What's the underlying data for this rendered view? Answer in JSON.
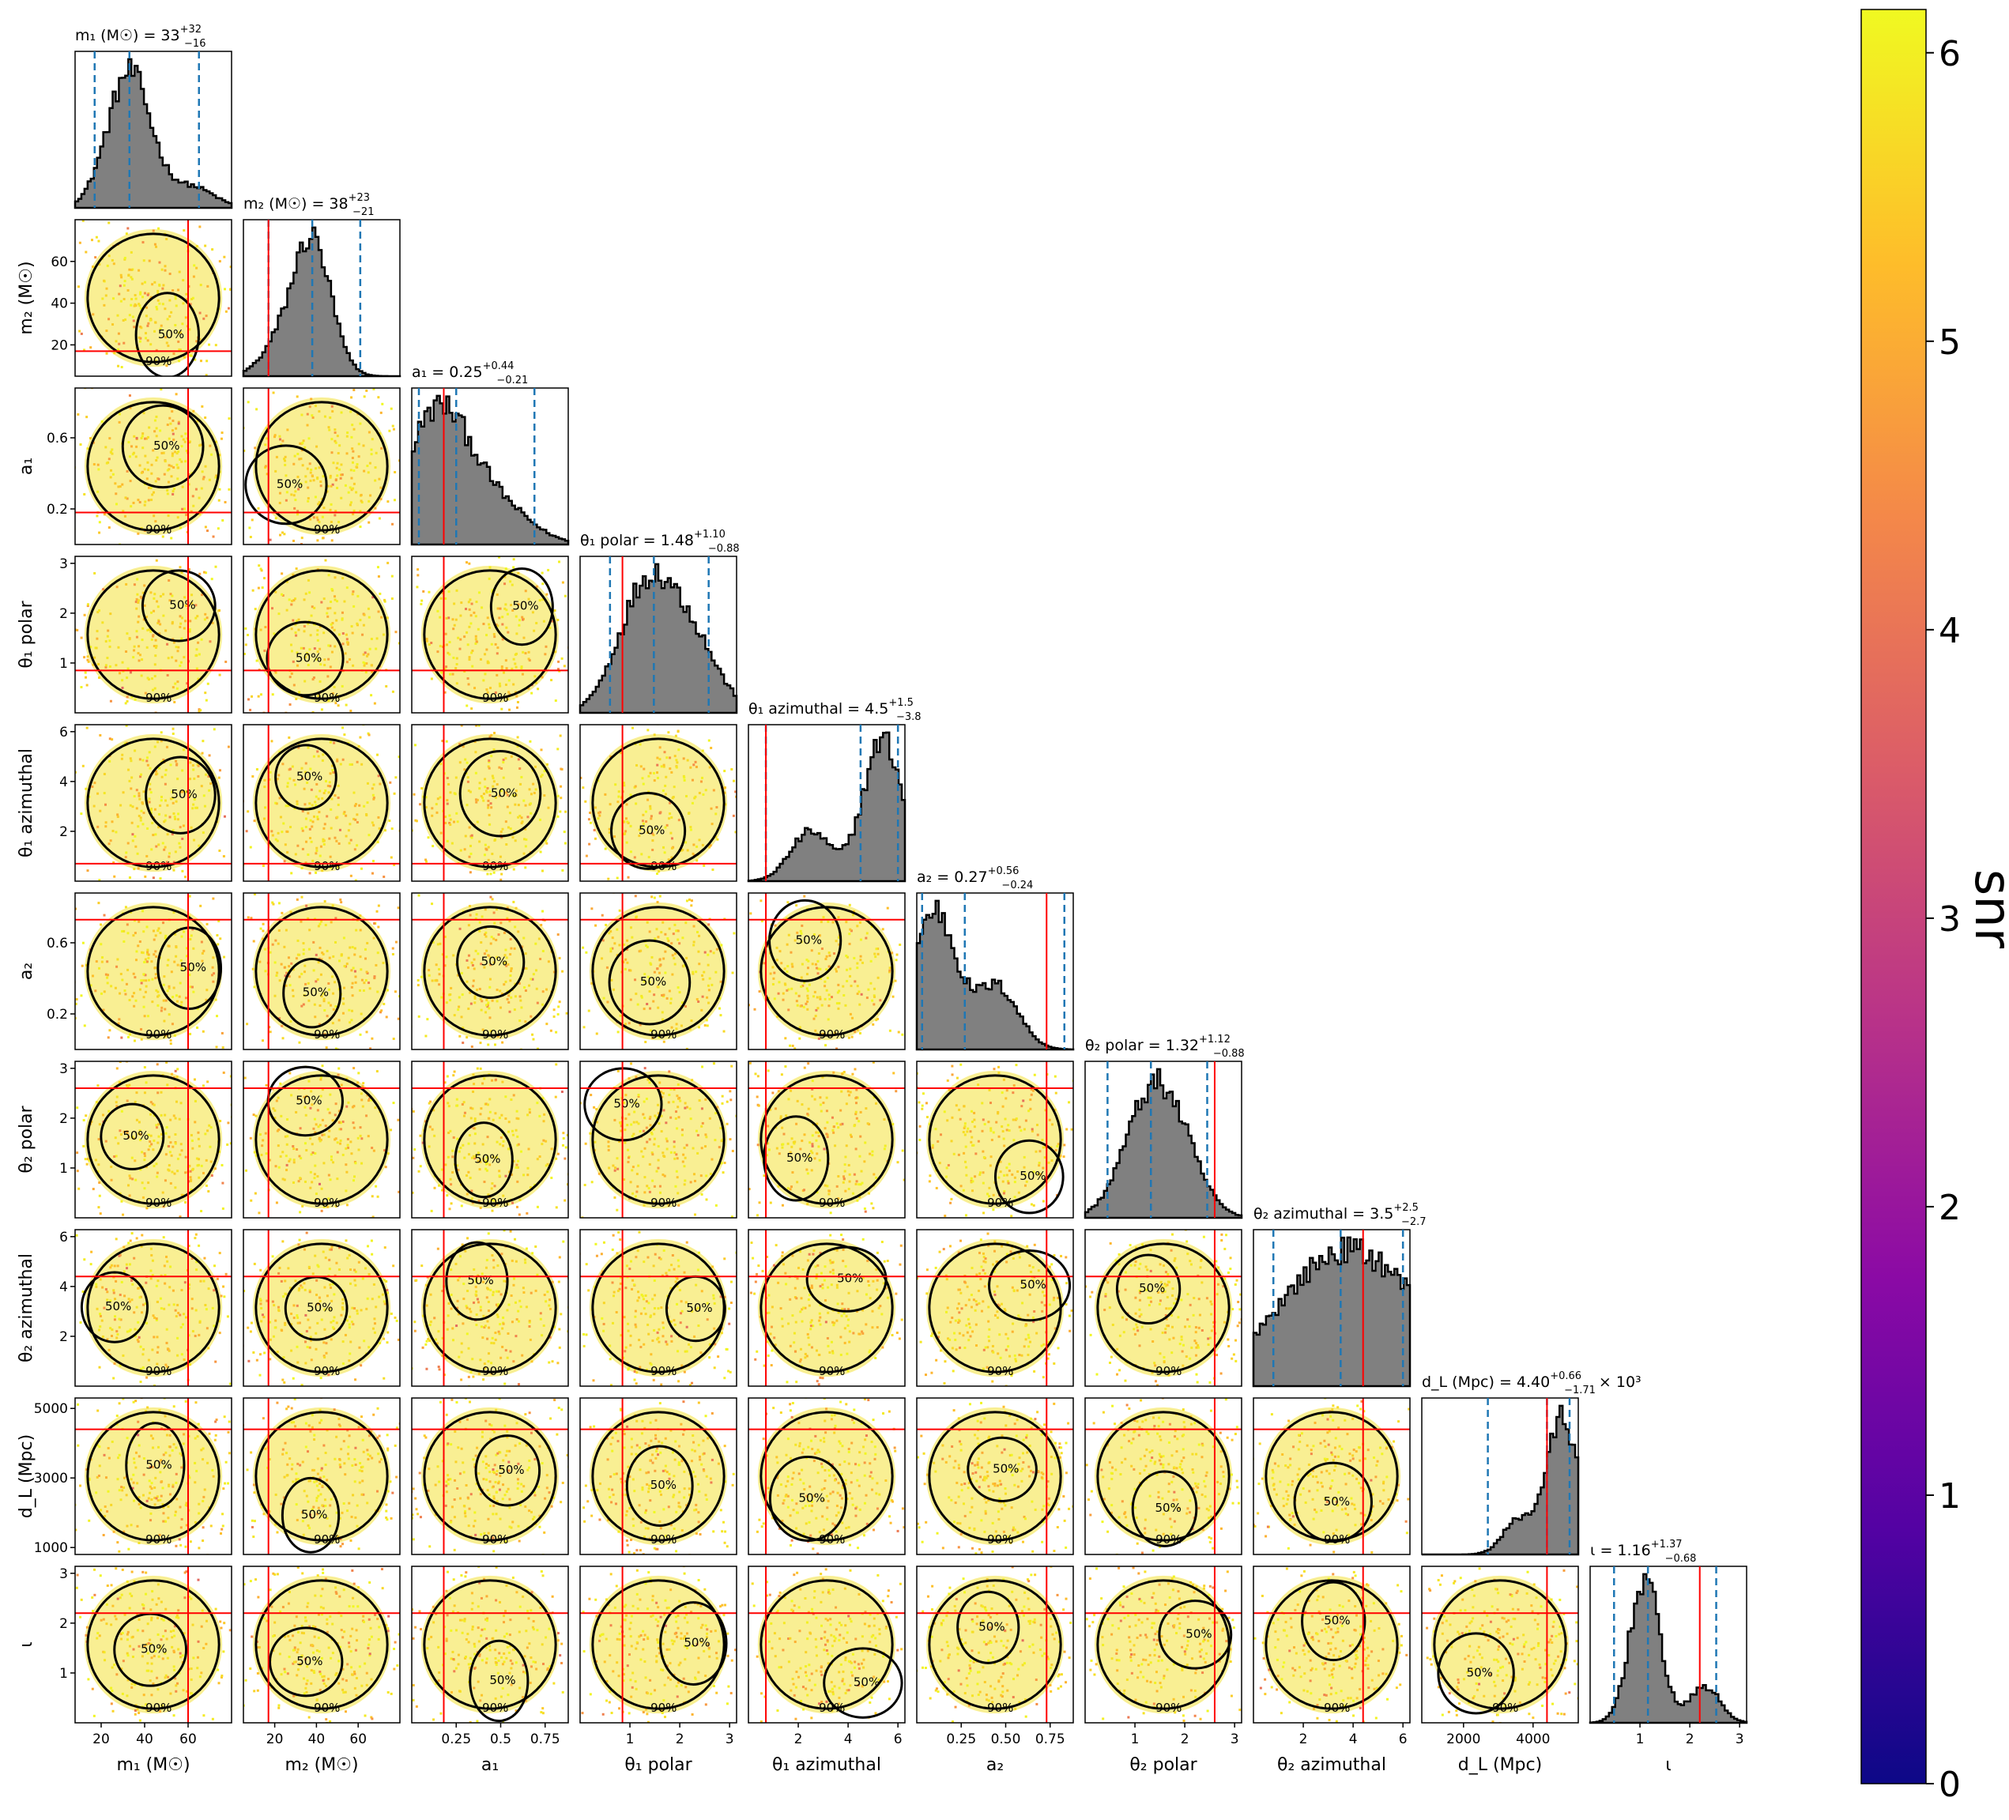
{
  "chart_data": {
    "type": "scatter",
    "subtype": "corner-plot",
    "colorbar": {
      "label": "snr",
      "range": [
        0,
        6.15
      ],
      "ticks": [
        "0",
        "1",
        "2",
        "3",
        "4",
        "5",
        "6"
      ],
      "colormap": [
        "#0d0887",
        "#5302a3",
        "#8b0aa5",
        "#b83289",
        "#db5c68",
        "#f48849",
        "#febd2a",
        "#f0f921"
      ]
    },
    "colors": {
      "truth_line": "#ff0000",
      "quantile_line": "#1f77b4",
      "histogram_fill": "#808080",
      "contour": "#000000"
    },
    "contour_labels": [
      "50%",
      "90%"
    ],
    "parameters": [
      {
        "xlabel": "m₁ (M☉)",
        "ylabel": "m₂ (M☉)",
        "title_name": "m₁ (M☉) = 33",
        "title_sup": "+32",
        "title_sub": "−16",
        "title_extra": "",
        "range": [
          8,
          80
        ],
        "ticks": [
          20,
          40,
          60
        ],
        "truth": 60,
        "quantiles": [
          17,
          33,
          65
        ],
        "hist_peak": 33,
        "hist_width": 10,
        "hist_alt_peak": 62,
        "hist_alt_weight": 0.15
      },
      {
        "xlabel": "m₂ (M☉)",
        "ylabel": "m₂ (M☉)",
        "title_name": "m₂ (M☉) = 38",
        "title_sup": "+23",
        "title_sub": "−21",
        "title_extra": "",
        "range": [
          5,
          80
        ],
        "ticks": [
          20,
          40,
          60
        ],
        "truth": 17,
        "quantiles": [
          17,
          38,
          61
        ],
        "hist_peak": 38,
        "hist_width": 9,
        "hist_alt_peak": 22,
        "hist_alt_weight": 0.2
      },
      {
        "xlabel": "a₁",
        "ylabel": "a₁",
        "title_name": "a₁ = 0.25",
        "title_sup": "+0.44",
        "title_sub": "−0.21",
        "title_extra": "",
        "range": [
          0,
          0.88
        ],
        "ticks": [
          0.25,
          0.5,
          0.75
        ],
        "ytick_values": [
          0.2,
          0.6
        ],
        "truth": 0.18,
        "quantiles": [
          0.04,
          0.25,
          0.69
        ],
        "hist_peak": 0.15,
        "hist_width": 0.18,
        "hist_alt_peak": 0.5,
        "hist_alt_weight": 0.25
      },
      {
        "xlabel": "θ₁ polar",
        "ylabel": "θ₁ polar",
        "title_name": "θ₁ polar = 1.48",
        "title_sup": "+1.10",
        "title_sub": "−0.88",
        "title_extra": "",
        "range": [
          0,
          3.14
        ],
        "ticks": [
          1,
          2,
          3
        ],
        "ytick_values": [
          1,
          2,
          3
        ],
        "truth": 0.85,
        "quantiles": [
          0.6,
          1.48,
          2.58
        ],
        "hist_peak": 1.3,
        "hist_width": 0.55,
        "hist_alt_peak": 2.2,
        "hist_alt_weight": 0.6
      },
      {
        "xlabel": "θ₁ azimuthal",
        "ylabel": "θ₁ azimuthal",
        "title_name": "θ₁ azimuthal = 4.5",
        "title_sup": "+1.5",
        "title_sub": "−3.8",
        "title_extra": "",
        "range": [
          0,
          6.28
        ],
        "ticks": [
          2,
          4,
          6
        ],
        "ytick_values": [
          2,
          4,
          6
        ],
        "truth": 0.7,
        "quantiles": [
          0.7,
          4.5,
          6.0
        ],
        "hist_peak": 5.4,
        "hist_width": 0.8,
        "hist_alt_peak": 2.5,
        "hist_alt_weight": 0.35
      },
      {
        "xlabel": "a₂",
        "ylabel": "a₂",
        "title_name": "a₂ = 0.27",
        "title_sup": "+0.56",
        "title_sub": "−0.24",
        "title_extra": "",
        "range": [
          0,
          0.88
        ],
        "ticks": [
          0.25,
          0.5,
          0.75
        ],
        "tick_labels": [
          "0.25",
          "0.50",
          "0.75"
        ],
        "ytick_values": [
          0.2,
          0.6
        ],
        "truth": 0.73,
        "quantiles": [
          0.03,
          0.27,
          0.83
        ],
        "hist_peak": 0.1,
        "hist_width": 0.12,
        "hist_alt_peak": 0.45,
        "hist_alt_weight": 0.45
      },
      {
        "xlabel": "θ₂ polar",
        "ylabel": "θ₂ polar",
        "title_name": "θ₂ polar = 1.32",
        "title_sup": "+1.12",
        "title_sub": "−0.88",
        "title_extra": "",
        "range": [
          0,
          3.14
        ],
        "ticks": [
          1,
          2,
          3
        ],
        "ytick_values": [
          1,
          2,
          3
        ],
        "truth": 2.6,
        "quantiles": [
          0.45,
          1.32,
          2.45
        ],
        "hist_peak": 1.2,
        "hist_width": 0.5,
        "hist_alt_peak": 1.8,
        "hist_alt_weight": 0.8
      },
      {
        "xlabel": "θ₂ azimuthal",
        "ylabel": "θ₂ azimuthal",
        "title_name": "θ₂ azimuthal = 3.5",
        "title_sup": "+2.5",
        "title_sub": "−2.7",
        "title_extra": "",
        "range": [
          0,
          6.28
        ],
        "ticks": [
          2,
          4,
          6
        ],
        "ytick_values": [
          2,
          4,
          6
        ],
        "truth": 4.4,
        "quantiles": [
          0.8,
          3.5,
          6.0
        ],
        "hist_peak": 3.0,
        "hist_width": 2.5,
        "hist_alt_peak": 5.5,
        "hist_alt_weight": 0.6
      },
      {
        "xlabel": "d_L (Mpc)",
        "ylabel": "d_L (Mpc)",
        "title_name": "d_L (Mpc) = 4.40",
        "title_sup": "+0.66",
        "title_sub": "−1.71",
        "title_extra": "× 10³",
        "range": [
          800,
          5300
        ],
        "ticks": [
          2000,
          4000
        ],
        "ytick_values": [
          1000,
          3000,
          5000
        ],
        "truth": 4400,
        "quantiles": [
          2700,
          4400,
          5050
        ],
        "hist_peak": 4850,
        "hist_width": 450,
        "hist_alt_peak": 3600,
        "hist_alt_weight": 0.25
      },
      {
        "xlabel": "ι",
        "ylabel": "ι",
        "title_name": "ι = 1.16",
        "title_sup": "+1.37",
        "title_sub": "−0.68",
        "title_extra": "",
        "range": [
          0,
          3.14
        ],
        "ticks": [
          1,
          2,
          3
        ],
        "ytick_values": [
          1,
          2,
          3
        ],
        "truth": 2.2,
        "quantiles": [
          0.48,
          1.16,
          2.53
        ],
        "hist_peak": 1.1,
        "hist_width": 0.3,
        "hist_alt_peak": 2.3,
        "hist_alt_weight": 0.25
      }
    ]
  }
}
